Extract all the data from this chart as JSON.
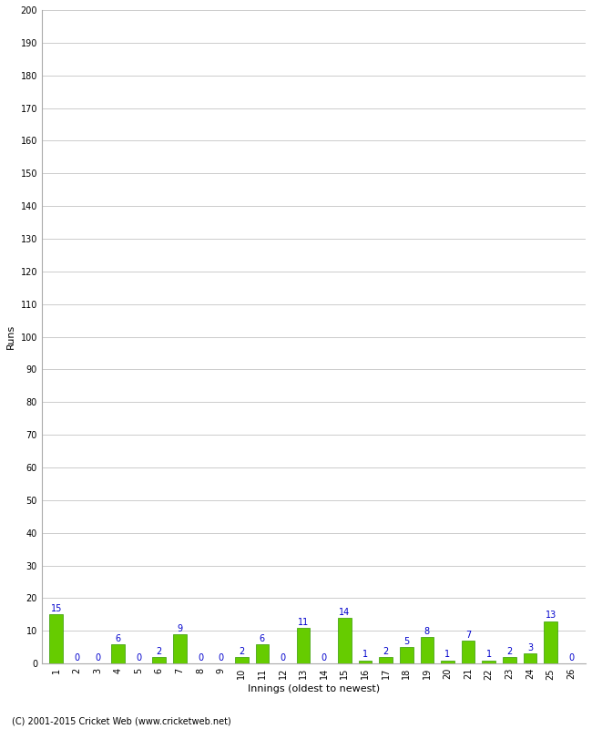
{
  "xlabel": "Innings (oldest to newest)",
  "ylabel": "Runs",
  "values": [
    15,
    0,
    0,
    6,
    0,
    2,
    9,
    0,
    0,
    2,
    6,
    0,
    11,
    0,
    14,
    1,
    2,
    5,
    8,
    1,
    7,
    1,
    2,
    3,
    13,
    0
  ],
  "categories": [
    "1",
    "2",
    "3",
    "4",
    "5",
    "6",
    "7",
    "8",
    "9",
    "10",
    "11",
    "12",
    "13",
    "14",
    "15",
    "16",
    "17",
    "18",
    "19",
    "20",
    "21",
    "22",
    "23",
    "24",
    "25",
    "26"
  ],
  "bar_color": "#66cc00",
  "bar_edge_color": "#339900",
  "label_color": "#0000cc",
  "ylim": [
    0,
    200
  ],
  "yticks": [
    0,
    10,
    20,
    30,
    40,
    50,
    60,
    70,
    80,
    90,
    100,
    110,
    120,
    130,
    140,
    150,
    160,
    170,
    180,
    190,
    200
  ],
  "grid_color": "#cccccc",
  "background_color": "#ffffff",
  "footer": "(C) 2001-2015 Cricket Web (www.cricketweb.net)",
  "label_fontsize": 8,
  "tick_fontsize": 7,
  "bar_label_fontsize": 7,
  "footer_fontsize": 7
}
